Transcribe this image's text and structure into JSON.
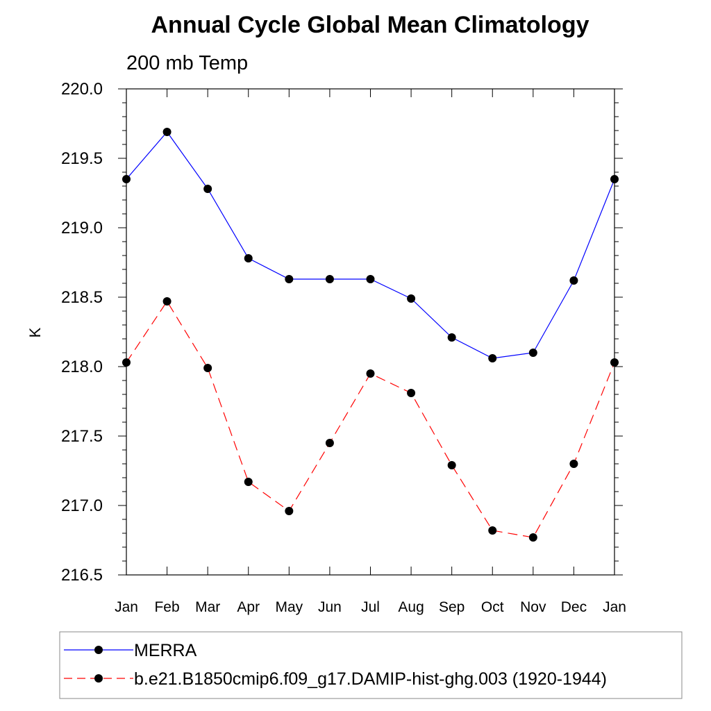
{
  "chart_data": {
    "type": "line",
    "title": "Annual Cycle Global Mean Climatology",
    "subtitle": "200 mb Temp",
    "xlabel": "",
    "ylabel": "K",
    "categories": [
      "Jan",
      "Feb",
      "Mar",
      "Apr",
      "May",
      "Jun",
      "Jul",
      "Aug",
      "Sep",
      "Oct",
      "Nov",
      "Dec",
      "Jan"
    ],
    "ylim": [
      216.5,
      220.0
    ],
    "yticks": [
      "216.5",
      "217.0",
      "217.5",
      "218.0",
      "218.5",
      "219.0",
      "219.5",
      "220.0"
    ],
    "ytick_values": [
      216.5,
      217.0,
      217.5,
      218.0,
      218.5,
      219.0,
      219.5,
      220.0
    ],
    "series": [
      {
        "name": "MERRA",
        "color": "#0000ff",
        "dash": "solid",
        "values": [
          219.35,
          219.69,
          219.28,
          218.78,
          218.63,
          218.63,
          218.63,
          218.49,
          218.21,
          218.06,
          218.1,
          218.62,
          219.35
        ]
      },
      {
        "name": "b.e21.B1850cmip6.f09_g17.DAMIP-hist-ghg.003 (1920-1944)",
        "color": "#ff0000",
        "dash": "dashed",
        "values": [
          218.03,
          218.47,
          217.99,
          217.17,
          216.96,
          217.45,
          217.95,
          217.81,
          217.29,
          216.82,
          216.77,
          217.3,
          218.03
        ]
      }
    ],
    "legend_position": "bottom"
  }
}
